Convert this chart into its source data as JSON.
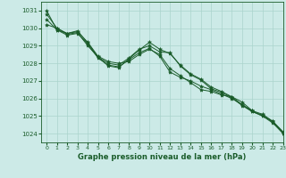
{
  "title": "",
  "xlabel": "Graphe pression niveau de la mer (hPa)",
  "ylabel": "",
  "xlim": [
    -0.5,
    23
  ],
  "ylim": [
    1023.5,
    1031.5
  ],
  "yticks": [
    1024,
    1025,
    1026,
    1027,
    1028,
    1029,
    1030,
    1031
  ],
  "xticks": [
    0,
    1,
    2,
    3,
    4,
    5,
    6,
    7,
    8,
    9,
    10,
    11,
    12,
    13,
    14,
    15,
    16,
    17,
    18,
    19,
    20,
    21,
    22,
    23
  ],
  "background_color": "#cceae7",
  "grid_color": "#aad4cc",
  "line_color": "#1a5c2a",
  "marker": "*",
  "series": [
    [
      1031.0,
      1029.9,
      1029.7,
      1029.8,
      1029.2,
      1028.4,
      1028.1,
      1028.0,
      1028.1,
      1028.5,
      1028.8,
      1028.5,
      1027.7,
      1027.3,
      1026.9,
      1026.5,
      1026.4,
      1026.2,
      1026.1,
      1025.8,
      1025.3,
      1025.0,
      1024.7,
      1024.0
    ],
    [
      1030.5,
      1029.9,
      1029.6,
      1029.7,
      1029.1,
      1028.3,
      1027.9,
      1027.8,
      1028.2,
      1028.6,
      1028.85,
      1028.4,
      1027.5,
      1027.2,
      1027.0,
      1026.7,
      1026.5,
      1026.25,
      1026.0,
      1025.65,
      1025.25,
      1025.0,
      1024.6,
      1024.0
    ],
    [
      1030.2,
      1030.0,
      1029.65,
      1029.75,
      1029.0,
      1028.35,
      1027.85,
      1027.75,
      1028.25,
      1028.75,
      1029.2,
      1028.8,
      1028.55,
      1027.9,
      1027.4,
      1027.1,
      1026.65,
      1026.4,
      1026.1,
      1025.65,
      1025.3,
      1025.1,
      1024.7,
      1024.1
    ],
    [
      1030.8,
      1030.0,
      1029.7,
      1029.85,
      1029.15,
      1028.35,
      1028.0,
      1027.9,
      1028.3,
      1028.8,
      1029.0,
      1028.65,
      1028.6,
      1027.85,
      1027.35,
      1027.05,
      1026.55,
      1026.35,
      1026.05,
      1025.6,
      1025.25,
      1025.05,
      1024.65,
      1024.05
    ]
  ]
}
